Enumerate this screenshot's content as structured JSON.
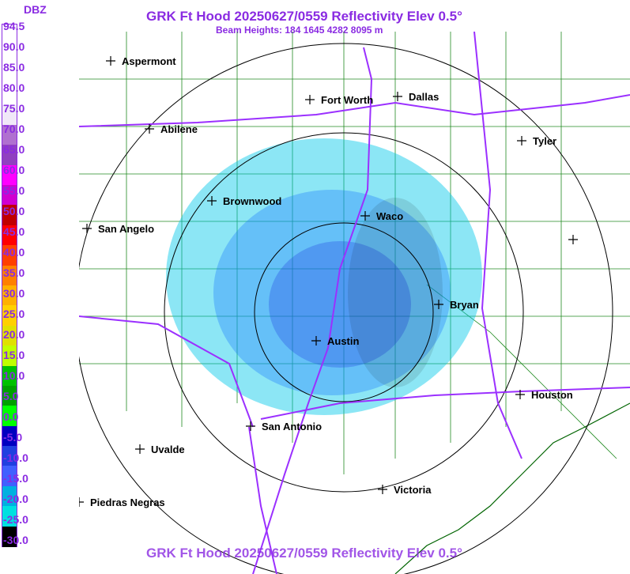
{
  "header": {
    "title": "GRK Ft Hood 20250627/0559 Reflectivity Elev 0.5°",
    "subtitle": "Beam Heights: 184 1645 4282 8095 m"
  },
  "footer": {
    "title": "GRK Ft Hood 20250627/0559 Reflectivity Elev 0.5°"
  },
  "legend": {
    "unit": "DBZ",
    "labels": [
      "94.5",
      "90.0",
      "85.0",
      "80.0",
      "75.0",
      "70.0",
      "65.0",
      "60.0",
      "55.0",
      "50.0",
      "45.0",
      "40.0",
      "35.0",
      "30.0",
      "25.0",
      "20.0",
      "15.0",
      "10.0",
      "5.0",
      "0.0",
      "-5.0",
      "-10.0",
      "-15.0",
      "-20.0",
      "-25.0",
      "-30.0"
    ],
    "colors": [
      "#ffffff",
      "#ffffff",
      "#ffffff",
      "#ffffff",
      "#f0e8f8",
      "#b070d0",
      "#9040c0",
      "#ff00ff",
      "#d000d0",
      "#c00000",
      "#ff0000",
      "#ff4000",
      "#ff8000",
      "#ffb000",
      "#ffd000",
      "#e0e000",
      "#c0ff00",
      "#00c000",
      "#00a000",
      "#00ff00",
      "#0000c0",
      "#2040e0",
      "#4060ff",
      "#00b0e0",
      "#00e0e0",
      "#000000"
    ]
  },
  "map": {
    "cities": [
      {
        "name": "Aspermont"
      },
      {
        "name": "Fort Worth"
      },
      {
        "name": "Dallas"
      },
      {
        "name": "Abilene"
      },
      {
        "name": "Tyler"
      },
      {
        "name": "Brownwood"
      },
      {
        "name": "Waco"
      },
      {
        "name": "San Angelo"
      },
      {
        "name": "Bryan"
      },
      {
        "name": "Austin"
      },
      {
        "name": "Houston"
      },
      {
        "name": "San Antonio"
      },
      {
        "name": "Uvalde"
      },
      {
        "name": "Victoria"
      },
      {
        "name": "Piedras Negras"
      },
      {
        "name": ""
      }
    ]
  }
}
